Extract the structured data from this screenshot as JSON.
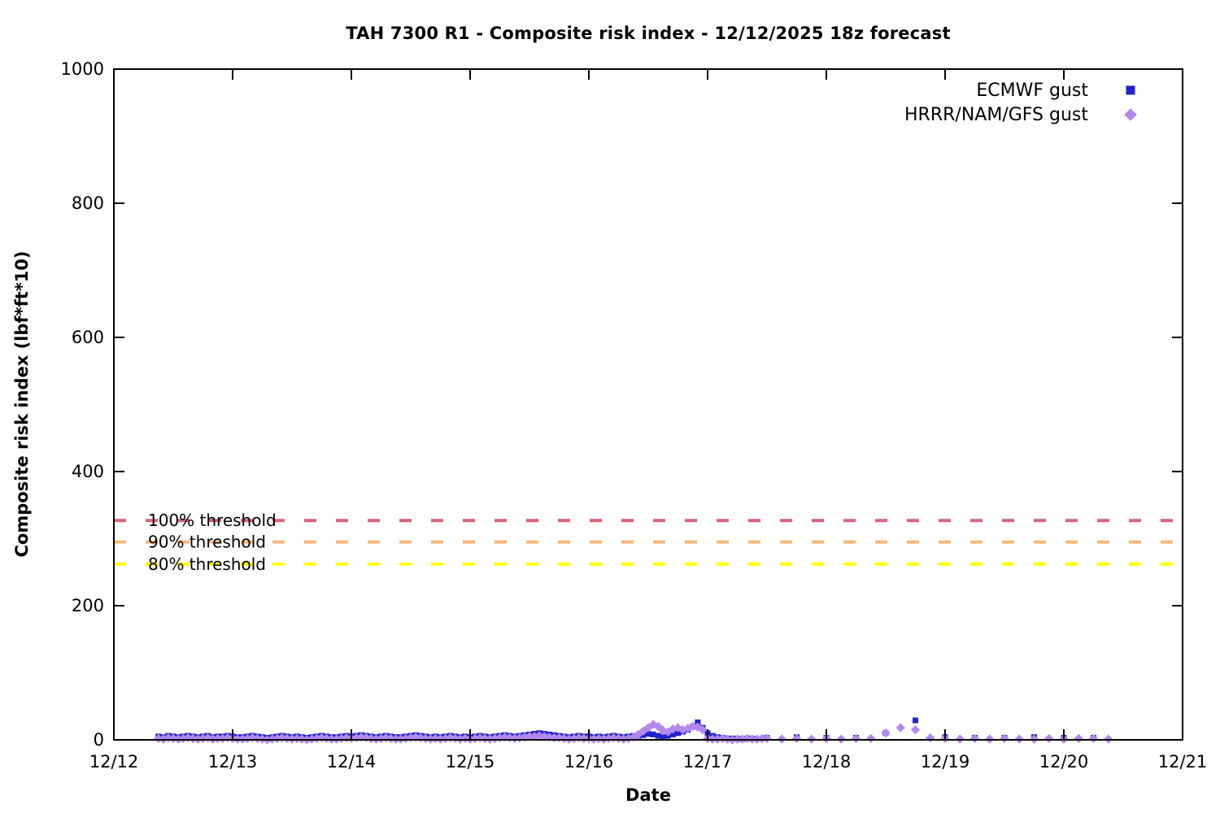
{
  "title": "TAH 7300 R1 - Composite risk index - 12/12/2025 18z forecast",
  "chart_data": {
    "type": "scatter",
    "title": "TAH 7300 R1 - Composite risk index - 12/12/2025 18z forecast",
    "xlabel": "Date",
    "ylabel": "Composite risk index (lbf*ft*10)",
    "ylim": [
      0,
      1000
    ],
    "y_ticks": [
      0,
      200,
      400,
      600,
      800,
      1000
    ],
    "x_tick_labels": [
      "12/12",
      "12/13",
      "12/14",
      "12/15",
      "12/16",
      "12/17",
      "12/18",
      "12/19",
      "12/20",
      "12/21"
    ],
    "x_range_days": [
      0,
      9
    ],
    "x_units": "days offset from 12/12 00:00",
    "grid": false,
    "legend_position": "top-right-inside",
    "thresholds": [
      {
        "label": "100% threshold",
        "value": 327,
        "color": "#d9647d",
        "style": "dashed"
      },
      {
        "label": "90% threshold",
        "value": 295,
        "color": "#f9b97a",
        "style": "dashed"
      },
      {
        "label": "80% threshold",
        "value": 262,
        "color": "#ffff00",
        "style": "dashed"
      }
    ],
    "series": [
      {
        "name": "ECMWF gust",
        "marker": "square",
        "color": "#2222cc",
        "segments": [
          {
            "start_day": 0.375,
            "step_hours": 1,
            "values": [
              5,
              4,
              6,
              5,
              4,
              5,
              6,
              5,
              4,
              5,
              6,
              4,
              5,
              5,
              6,
              5,
              4,
              4,
              5,
              6,
              5,
              4,
              3,
              4,
              5,
              6,
              5,
              4,
              5,
              4,
              3,
              4,
              5,
              6,
              5,
              4,
              4,
              5,
              6,
              5,
              6,
              7,
              6,
              5,
              4,
              5,
              6,
              5,
              4,
              4,
              5,
              6,
              7,
              6,
              5,
              4,
              5,
              4,
              5,
              6,
              5,
              4,
              5,
              4,
              5,
              6,
              5,
              4,
              5,
              6,
              7,
              6,
              5,
              6,
              7,
              8,
              9,
              10,
              9,
              8,
              7,
              6,
              5,
              4,
              5,
              6,
              5,
              5,
              4,
              5,
              4,
              5,
              6,
              5,
              4,
              5,
              6,
              6,
              7,
              9,
              8,
              6,
              4,
              6,
              8,
              10,
              12,
              15,
              20,
              26,
              18,
              10,
              6,
              4,
              3,
              2,
              2,
              2,
              1,
              2,
              2
            ]
          },
          {
            "start_day": 5.5,
            "step_hours": 6,
            "values": [
              3,
              4,
              3,
              3,
              10,
              29,
              4,
              3,
              3,
              4,
              3,
              3
            ]
          }
        ]
      },
      {
        "name": "HRRR/NAM/GFS gust",
        "marker": "diamond",
        "color": "#b288f0",
        "segments": [
          {
            "start_day": 0.375,
            "step_hours": 1,
            "values": [
              2,
              1,
              3,
              2,
              1,
              2,
              3,
              2,
              1,
              2,
              3,
              1,
              2,
              2,
              3,
              2,
              1,
              1,
              2,
              3,
              2,
              1,
              0,
              1,
              2,
              3,
              2,
              1,
              2,
              1,
              0,
              1,
              2,
              3,
              2,
              1,
              1,
              2,
              3,
              2,
              3,
              4,
              3,
              2,
              1,
              2,
              3,
              2,
              1,
              1,
              2,
              3,
              4,
              3,
              2,
              1,
              2,
              1,
              2,
              3,
              2,
              1,
              2,
              1,
              2,
              3,
              2,
              1,
              2,
              3,
              4,
              3,
              2,
              3,
              4,
              5,
              5,
              6,
              5,
              4,
              3,
              3,
              2,
              1,
              2,
              3,
              2,
              2,
              1,
              2,
              1,
              2,
              3,
              2,
              1,
              2,
              4,
              8,
              13,
              18,
              23,
              20,
              14,
              12,
              16,
              18,
              15,
              17,
              20,
              19,
              15,
              2,
              1,
              1,
              2,
              1,
              0,
              1,
              1,
              2,
              1,
              1,
              2
            ]
          },
          {
            "start_day": 5.5,
            "step_hours": 3,
            "values": [
              2,
              1,
              2,
              1,
              2,
              1,
              2,
              2,
              10,
              18,
              15,
              3,
              2,
              1,
              2,
              1,
              2,
              1,
              1,
              2,
              1,
              2,
              2,
              1
            ]
          }
        ]
      }
    ]
  }
}
